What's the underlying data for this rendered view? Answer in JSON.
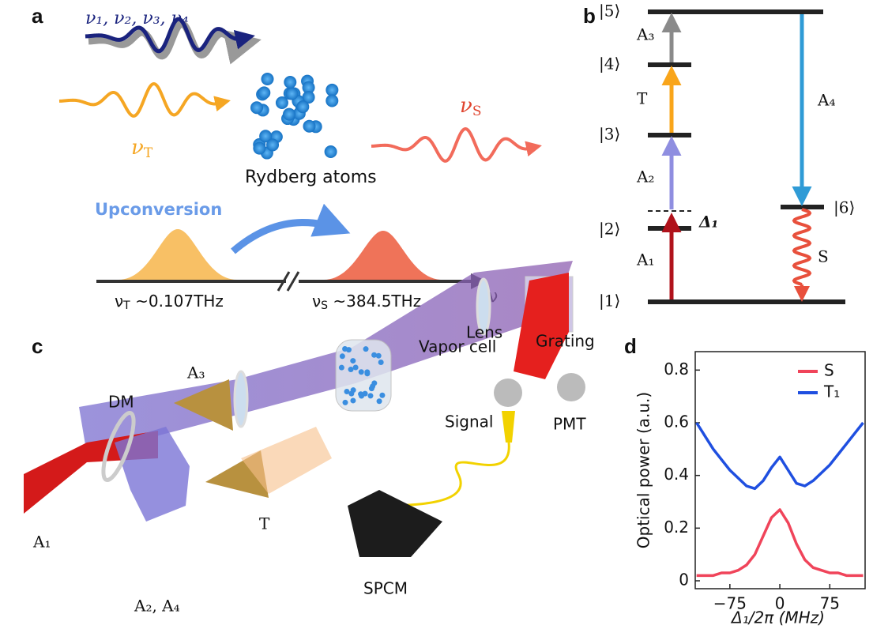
{
  "panel_a": {
    "letter": "a",
    "input_label": "ν₁, ν₂, ν₃, ν₄",
    "terahertz_label": {
      "base": "ν",
      "sub": "T"
    },
    "signal_label": {
      "base": "ν",
      "sub": "S"
    },
    "atoms_label": "Rydberg atoms",
    "process_label": "Upconversion",
    "axis_terahertz": {
      "base": "ν",
      "sub": "T",
      "rest": " ~0.107THz"
    },
    "axis_signal": {
      "base": "ν",
      "sub": "S",
      "rest": " ~384.5THz"
    },
    "axis_label": "ν"
  },
  "panel_b": {
    "letter": "b",
    "levels": [
      "|1⟩",
      "|2⟩",
      "|3⟩",
      "|4⟩",
      "|5⟩",
      "|6⟩"
    ],
    "transitions": {
      "a1": "A₁",
      "a2": "A₂",
      "a3": "A₃",
      "a4": "A₄",
      "t": "T",
      "s": "S"
    },
    "detuning": "Δ₁"
  },
  "panel_c": {
    "letter": "c",
    "labels": {
      "a3": "A₃",
      "vapor_cell": "Vapor cell",
      "lens": "Lens",
      "grating": "Grating",
      "dm": "DM",
      "signal": "Signal",
      "pmt": "PMT",
      "t": "T",
      "a1": "A₁",
      "a2_a4": "A₂, A₄",
      "spcm": "SPCM"
    }
  },
  "chart_data": {
    "type": "line",
    "letter": "d",
    "x_label": "Δ₁/2π (MHz)",
    "y_label": "Optical power (a.u.)",
    "x": [
      -125,
      -112.5,
      -100,
      -87.5,
      -75,
      -62.5,
      -50,
      -37.5,
      -25,
      -12.5,
      0,
      12.5,
      25,
      37.5,
      50,
      62.5,
      75,
      87.5,
      100,
      112.5,
      125
    ],
    "series": [
      {
        "name": "S",
        "color": "#f0445a",
        "values": [
          0.02,
          0.02,
          0.02,
          0.03,
          0.03,
          0.04,
          0.06,
          0.1,
          0.17,
          0.24,
          0.27,
          0.22,
          0.14,
          0.08,
          0.05,
          0.04,
          0.03,
          0.03,
          0.02,
          0.02,
          0.02
        ]
      },
      {
        "name": "T₁",
        "color": "#1f4fe0",
        "values": [
          0.6,
          0.55,
          0.5,
          0.46,
          0.42,
          0.39,
          0.36,
          0.35,
          0.38,
          0.43,
          0.47,
          0.42,
          0.37,
          0.36,
          0.38,
          0.41,
          0.44,
          0.48,
          0.52,
          0.56,
          0.6
        ]
      }
    ],
    "xlim": [
      -127,
      128
    ],
    "ylim": [
      -0.03,
      0.87
    ],
    "xticks": [
      {
        "value": -75,
        "label": "−75"
      },
      0,
      75
    ],
    "yticks": [
      0,
      0.2,
      0.4,
      0.6,
      0.8
    ],
    "legend": "upper-right"
  }
}
